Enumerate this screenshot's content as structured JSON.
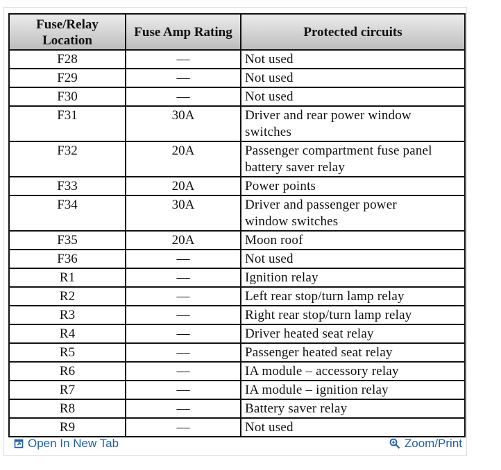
{
  "table": {
    "header": [
      "Fuse/Relay Location",
      "Fuse Amp Rating",
      "Protected circuits"
    ],
    "rows": [
      [
        "F28",
        "—",
        "Not used"
      ],
      [
        "F29",
        "—",
        "Not used"
      ],
      [
        "F30",
        "—",
        "Not used"
      ],
      [
        "F31",
        "30A",
        "Driver and rear power window switches"
      ],
      [
        "F32",
        "20A",
        "Passenger compartment fuse panel battery saver relay"
      ],
      [
        "F33",
        "20A",
        "Power points"
      ],
      [
        "F34",
        "30A",
        "Driver and passenger power window switches"
      ],
      [
        "F35",
        "20A",
        "Moon roof"
      ],
      [
        "F36",
        "—",
        "Not used"
      ],
      [
        "R1",
        "—",
        "Ignition relay"
      ],
      [
        "R2",
        "—",
        "Left rear stop/turn lamp relay"
      ],
      [
        "R3",
        "—",
        "Right rear stop/turn lamp relay"
      ],
      [
        "R4",
        "—",
        "Driver heated seat relay"
      ],
      [
        "R5",
        "—",
        "Passenger heated seat relay"
      ],
      [
        "R6",
        "—",
        "IA module – accessory relay"
      ],
      [
        "R7",
        "—",
        "IA module – ignition relay"
      ],
      [
        "R8",
        "—",
        "Battery saver relay"
      ],
      [
        "R9",
        "—",
        "Not used"
      ]
    ]
  },
  "footer": {
    "open_link": "Open In New Tab",
    "zoom_link": "Zoom/Print"
  }
}
